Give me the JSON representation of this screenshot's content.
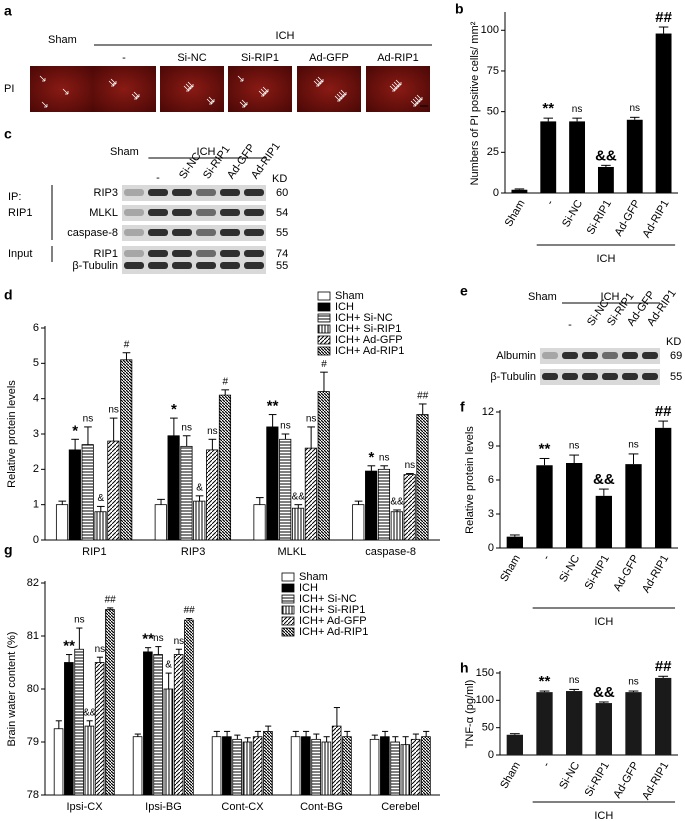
{
  "panels": {
    "a": {
      "label": "a",
      "sham": "Sham",
      "ich": "ICH",
      "columns": [
        "-",
        "Si-NC",
        "Si-RIP1",
        "Ad-GFP",
        "Ad-RIP1"
      ],
      "row_label": "PI"
    },
    "c": {
      "label": "c",
      "sham": "Sham",
      "ich": "ICH",
      "columns": [
        "-",
        "Si-NC",
        "Si-RIP1",
        "Ad-GFP",
        "Ad-RIP1"
      ],
      "kd_header": "KD",
      "ip_label": "IP:",
      "ip_antibody": "RIP1",
      "input_label": "Input",
      "rows": [
        {
          "name": "RIP3",
          "kd": 60
        },
        {
          "name": "MLKL",
          "kd": 54
        },
        {
          "name": "caspase-8",
          "kd": 55
        },
        {
          "name": "RIP1",
          "kd": 74
        },
        {
          "name": "β-Tubulin",
          "kd": 55
        }
      ]
    },
    "e": {
      "label": "e",
      "sham": "Sham",
      "ich": "ICH",
      "columns": [
        "-",
        "Si-NC",
        "Si-RIP1",
        "Ad-GFP",
        "Ad-RIP1"
      ],
      "kd_header": "KD",
      "rows": [
        {
          "name": "Albumin",
          "kd": 69
        },
        {
          "name": "β-Tubulin",
          "kd": 55
        }
      ]
    }
  },
  "chart_data": [
    {
      "panel": "b",
      "type": "bar",
      "ylabel": "Numbers of PI positive cells/ mm²",
      "categories": [
        "Sham",
        "-",
        "Si-NC",
        "Si-RIP1",
        "Ad-GFP",
        "Ad-RIP1"
      ],
      "values": [
        2,
        44,
        44,
        16,
        45,
        98
      ],
      "errors": [
        0.5,
        2,
        2,
        1,
        1.5,
        4
      ],
      "annotations": [
        null,
        "**",
        "ns",
        "&&",
        "ns",
        "##"
      ],
      "group_label": "ICH",
      "color": "#000000",
      "ylim": [
        0,
        110
      ],
      "yticks": [
        0,
        25,
        50,
        75,
        100
      ]
    },
    {
      "panel": "d",
      "type": "grouped_bar",
      "ylabel": "Relative protein levels",
      "categories": [
        "RIP1",
        "RIP3",
        "MLKL",
        "caspase-8"
      ],
      "series": [
        {
          "name": "Sham",
          "color": "#ffffff",
          "values": [
            1.0,
            1.0,
            1.0,
            1.0
          ],
          "errors": [
            0.1,
            0.15,
            0.2,
            0.1
          ]
        },
        {
          "name": "ICH",
          "color": "#000000",
          "values": [
            2.55,
            2.95,
            3.2,
            1.95
          ],
          "errors": [
            0.3,
            0.5,
            0.35,
            0.15
          ],
          "annotations": [
            "*",
            "*",
            "**",
            "*"
          ]
        },
        {
          "name": "ICH+ Si-NC",
          "color": "#000000",
          "values": [
            2.7,
            2.65,
            2.85,
            2.0
          ],
          "errors": [
            0.5,
            0.3,
            0.15,
            0.1
          ],
          "annotations": [
            "ns",
            "ns",
            "ns",
            "ns"
          ]
        },
        {
          "name": "ICH+ Si-RIP1",
          "color": "#000000",
          "values": [
            0.8,
            1.1,
            0.9,
            0.8
          ],
          "errors": [
            0.15,
            0.15,
            0.1,
            0.05
          ],
          "annotations": [
            "&",
            "&",
            "&&",
            "&&"
          ]
        },
        {
          "name": "ICH+ Ad-GFP",
          "color": "#000000",
          "values": [
            2.8,
            2.55,
            2.6,
            1.85
          ],
          "errors": [
            0.65,
            0.3,
            0.6,
            0.03
          ],
          "annotations": [
            "ns",
            "ns",
            "ns",
            "ns"
          ]
        },
        {
          "name": "ICH+ Ad-RIP1",
          "color": "#000000",
          "values": [
            5.1,
            4.1,
            4.2,
            3.55
          ],
          "errors": [
            0.2,
            0.15,
            0.55,
            0.3
          ],
          "annotations": [
            "#",
            "#",
            "#",
            "##"
          ]
        }
      ],
      "legend": "upper right",
      "ylim": [
        0,
        6
      ],
      "yticks": [
        0,
        1,
        2,
        3,
        4,
        5,
        6
      ]
    },
    {
      "panel": "f",
      "type": "bar",
      "ylabel": "Relative protein levels",
      "categories": [
        "Sham",
        "-",
        "Si-NC",
        "Si-RIP1",
        "Ad-GFP",
        "Ad-RIP1"
      ],
      "values": [
        1,
        7.3,
        7.5,
        4.6,
        7.4,
        10.6
      ],
      "errors": [
        0.15,
        0.6,
        0.7,
        0.6,
        0.9,
        0.6
      ],
      "annotations": [
        null,
        "**",
        "ns",
        "&&",
        "ns",
        "##"
      ],
      "group_label": "ICH",
      "color": "#000000",
      "ylim": [
        0,
        12
      ],
      "yticks": [
        0,
        3,
        6,
        9,
        12
      ]
    },
    {
      "panel": "g",
      "type": "grouped_bar",
      "ylabel": "Brain water content (%)",
      "categories": [
        "Ipsi-CX",
        "Ipsi-BG",
        "Cont-CX",
        "Cont-BG",
        "Cerebel"
      ],
      "series": [
        {
          "name": "Sham",
          "color": "#ffffff",
          "values": [
            79.25,
            79.1,
            79.1,
            79.1,
            79.05
          ],
          "errors": [
            0.15,
            0.05,
            0.1,
            0.1,
            0.08
          ]
        },
        {
          "name": "ICH",
          "color": "#000000",
          "values": [
            80.5,
            80.7,
            79.1,
            79.1,
            79.1
          ],
          "errors": [
            0.15,
            0.08,
            0.1,
            0.1,
            0.1
          ],
          "annotations": [
            "**",
            "**",
            null,
            null,
            null
          ]
        },
        {
          "name": "ICH+ Si-NC",
          "color": "#000000",
          "values": [
            80.75,
            80.65,
            79.05,
            79.05,
            79.0
          ],
          "errors": [
            0.4,
            0.15,
            0.08,
            0.1,
            0.1
          ],
          "annotations": [
            "ns",
            "ns",
            null,
            null,
            null
          ]
        },
        {
          "name": "ICH+ Si-RIP1",
          "color": "#000000",
          "values": [
            79.3,
            80.0,
            79.0,
            79.0,
            78.95
          ],
          "errors": [
            0.1,
            0.3,
            0.08,
            0.1,
            0.15
          ],
          "annotations": [
            "&&",
            "&",
            null,
            null,
            null
          ]
        },
        {
          "name": "ICH+ Ad-GFP",
          "color": "#000000",
          "values": [
            80.5,
            80.65,
            79.1,
            79.3,
            79.05
          ],
          "errors": [
            0.1,
            0.1,
            0.1,
            0.35,
            0.1
          ],
          "annotations": [
            "ns",
            "ns",
            null,
            null,
            null
          ]
        },
        {
          "name": "ICH+ Ad-RIP1",
          "color": "#000000",
          "values": [
            81.5,
            81.3,
            79.2,
            79.1,
            79.1
          ],
          "errors": [
            0.03,
            0.03,
            0.1,
            0.1,
            0.1
          ],
          "annotations": [
            "##",
            "##",
            null,
            null,
            null
          ]
        }
      ],
      "legend": "upper right",
      "ylim": [
        78,
        82
      ],
      "yticks": [
        78,
        79,
        80,
        81,
        82
      ]
    },
    {
      "panel": "h",
      "type": "bar",
      "ylabel": "TNF-α (pg/ml)",
      "categories": [
        "Sham",
        "-",
        "Si-NC",
        "Si-RIP1",
        "Ad-GFP",
        "Ad-RIP1"
      ],
      "values": [
        37,
        115,
        117,
        95,
        115,
        141
      ],
      "errors": [
        2,
        2,
        3,
        2,
        2,
        3
      ],
      "annotations": [
        null,
        "**",
        "ns",
        "&&",
        "ns",
        "##"
      ],
      "group_label": "ICH",
      "color": "#1a1a1a",
      "ylim": [
        0,
        150
      ],
      "yticks": [
        0,
        50,
        100,
        150
      ]
    }
  ]
}
